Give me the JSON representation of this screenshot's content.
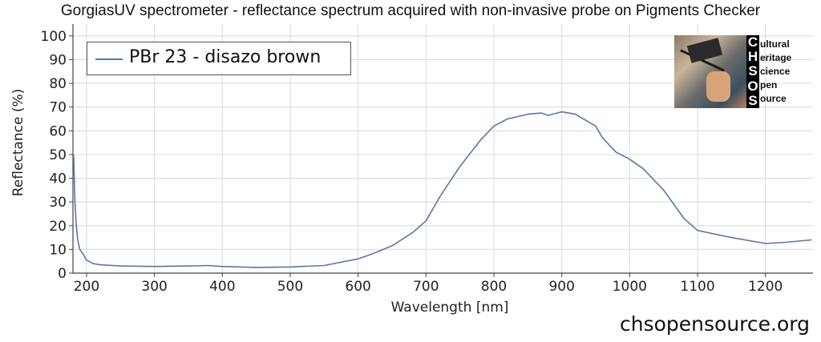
{
  "header": {
    "title": "GorgiasUV spectrometer - reflectance spectrum acquired with non-invasive probe on Pigments Checker"
  },
  "footer": {
    "url": "chsopensource.org"
  },
  "logo": {
    "letters": [
      "C",
      "H",
      "S",
      "O",
      "S"
    ],
    "words": [
      "ultural",
      "eritage",
      "cience",
      "pen",
      "ource"
    ]
  },
  "chart_data": {
    "type": "line",
    "title": "GorgiasUV spectrometer - reflectance spectrum acquired with non-invasive probe on Pigments Checker",
    "xlabel": "Wavelength [nm]",
    "ylabel": "Reflectance (%)",
    "xlim": [
      180,
      1270
    ],
    "ylim": [
      0,
      105
    ],
    "xticks": [
      200,
      300,
      400,
      500,
      600,
      700,
      800,
      900,
      1000,
      1100,
      1200
    ],
    "yticks": [
      0,
      10,
      20,
      30,
      40,
      50,
      60,
      70,
      80,
      90,
      100
    ],
    "grid": true,
    "legend_position": "top-left",
    "series": [
      {
        "name": "PBr 23 - disazo brown",
        "color": "#5a78a6",
        "x": [
          181,
          183,
          185,
          187,
          190,
          195,
          200,
          210,
          220,
          250,
          300,
          350,
          380,
          400,
          450,
          500,
          550,
          600,
          620,
          650,
          680,
          700,
          720,
          750,
          780,
          800,
          820,
          850,
          870,
          880,
          900,
          920,
          950,
          960,
          980,
          1000,
          1020,
          1050,
          1080,
          1100,
          1150,
          1200,
          1230,
          1268
        ],
        "y": [
          50,
          30,
          20,
          14,
          10,
          8,
          5.5,
          4,
          3.5,
          3,
          2.8,
          3,
          3.2,
          2.8,
          2.4,
          2.6,
          3.2,
          6,
          8,
          11.5,
          17,
          22,
          32,
          45,
          56,
          62,
          65,
          67,
          67.5,
          66.5,
          68,
          67,
          62,
          57,
          51,
          48,
          44,
          35,
          23,
          18,
          15,
          12.5,
          13,
          14
        ]
      }
    ]
  }
}
